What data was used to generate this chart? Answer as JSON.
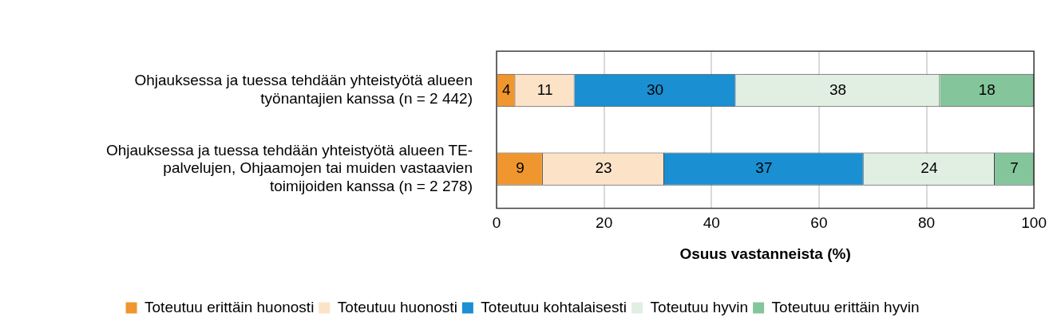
{
  "chart_data": {
    "type": "bar",
    "orientation": "horizontal",
    "stacked": true,
    "grid": "x",
    "legend": "bottom",
    "xlabel": "Osuus vastanneista (%)",
    "categories": [
      "Ohjauksessa ja tuessa tehdään yhteistyötä alueen työnantajien kanssa (n = 2 442)",
      "Ohjauksessa ja tuessa tehdään yhteistyötä alueen TE-palvelujen, Ohjaamojen tai muiden vastaavien toimijoiden kanssa (n = 2 278)"
    ],
    "xlim": [
      0,
      100
    ],
    "xticks": [
      0,
      20,
      40,
      60,
      80,
      100
    ],
    "series": [
      {
        "name": "Toteutuu erittäin huonosti",
        "color": "#f0962e",
        "values": [
          3.5,
          8.6
        ],
        "value_labels": [
          "4",
          "9"
        ]
      },
      {
        "name": "Toteutuu huonosti",
        "color": "#fce3c8",
        "values": [
          11,
          22.6
        ],
        "value_labels": [
          "11",
          "23"
        ]
      },
      {
        "name": "Toteutuu kohtalaisesti",
        "color": "#1a8fd2",
        "values": [
          30,
          37.1
        ],
        "value_labels": [
          "30",
          "37"
        ]
      },
      {
        "name": "Toteutuu hyvin",
        "color": "#e1efe3",
        "values": [
          38,
          24.4
        ],
        "value_labels": [
          "38",
          "24"
        ]
      },
      {
        "name": "Toteutuu erittäin hyvin",
        "color": "#85c59b",
        "values": [
          17.5,
          7.3
        ],
        "value_labels": [
          "18",
          "7"
        ]
      }
    ]
  }
}
